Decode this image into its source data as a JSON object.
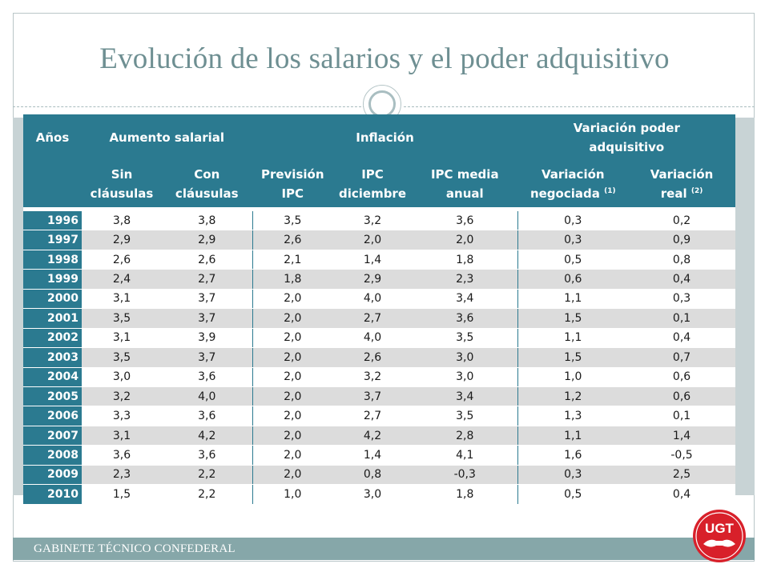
{
  "title": "Evolución de los salarios y el poder adquisitivo",
  "footer": "GABINETE TÉCNICO CONFEDERAL",
  "logo_text": "UGT",
  "colors": {
    "header": "#2b7a90",
    "title": "#6e8f92",
    "logo_red": "#d8202a",
    "footer_band": "#86a7a9"
  },
  "table": {
    "header_groups": {
      "years": "Años",
      "salary": "Aumento salarial",
      "inflation": "Inflación",
      "power_l1": "Variación poder",
      "power_l2": "adquisitivo"
    },
    "subheaders": {
      "sin_l1": "Sin",
      "sin_l2": "cláusulas",
      "con_l1": "Con",
      "con_l2": "cláusulas",
      "prev_l1": "Previsión",
      "prev_l2": "IPC",
      "ipcdic_l1": "IPC",
      "ipcdic_l2": "diciembre",
      "ipcmed_l1": "IPC media",
      "ipcmed_l2": "anual",
      "neg_l1": "Variación",
      "neg_l2": "negociada",
      "neg_sup": "(1)",
      "real_l1": "Variación",
      "real_l2": "real",
      "real_sup": "(2)"
    },
    "rows": [
      [
        "1996",
        "3,8",
        "3,8",
        "3,5",
        "3,2",
        "3,6",
        "0,3",
        "0,2"
      ],
      [
        "1997",
        "2,9",
        "2,9",
        "2,6",
        "2,0",
        "2,0",
        "0,3",
        "0,9"
      ],
      [
        "1998",
        "2,6",
        "2,6",
        "2,1",
        "1,4",
        "1,8",
        "0,5",
        "0,8"
      ],
      [
        "1999",
        "2,4",
        "2,7",
        "1,8",
        "2,9",
        "2,3",
        "0,6",
        "0,4"
      ],
      [
        "2000",
        "3,1",
        "3,7",
        "2,0",
        "4,0",
        "3,4",
        "1,1",
        "0,3"
      ],
      [
        "2001",
        "3,5",
        "3,7",
        "2,0",
        "2,7",
        "3,6",
        "1,5",
        "0,1"
      ],
      [
        "2002",
        "3,1",
        "3,9",
        "2,0",
        "4,0",
        "3,5",
        "1,1",
        "0,4"
      ],
      [
        "2003",
        "3,5",
        "3,7",
        "2,0",
        "2,6",
        "3,0",
        "1,5",
        "0,7"
      ],
      [
        "2004",
        "3,0",
        "3,6",
        "2,0",
        "3,2",
        "3,0",
        "1,0",
        "0,6"
      ],
      [
        "2005",
        "3,2",
        "4,0",
        "2,0",
        "3,7",
        "3,4",
        "1,2",
        "0,6"
      ],
      [
        "2006",
        "3,3",
        "3,6",
        "2,0",
        "2,7",
        "3,5",
        "1,3",
        "0,1"
      ],
      [
        "2007",
        "3,1",
        "4,2",
        "2,0",
        "4,2",
        "2,8",
        "1,1",
        "1,4"
      ],
      [
        "2008",
        "3,6",
        "3,6",
        "2,0",
        "1,4",
        "4,1",
        "1,6",
        "-0,5"
      ],
      [
        "2009",
        "2,3",
        "2,2",
        "2,0",
        "0,8",
        "-0,3",
        "0,3",
        "2,5"
      ],
      [
        "2010",
        "1,5",
        "2,2",
        "1,0",
        "3,0",
        "1,8",
        "0,5",
        "0,4"
      ]
    ]
  }
}
